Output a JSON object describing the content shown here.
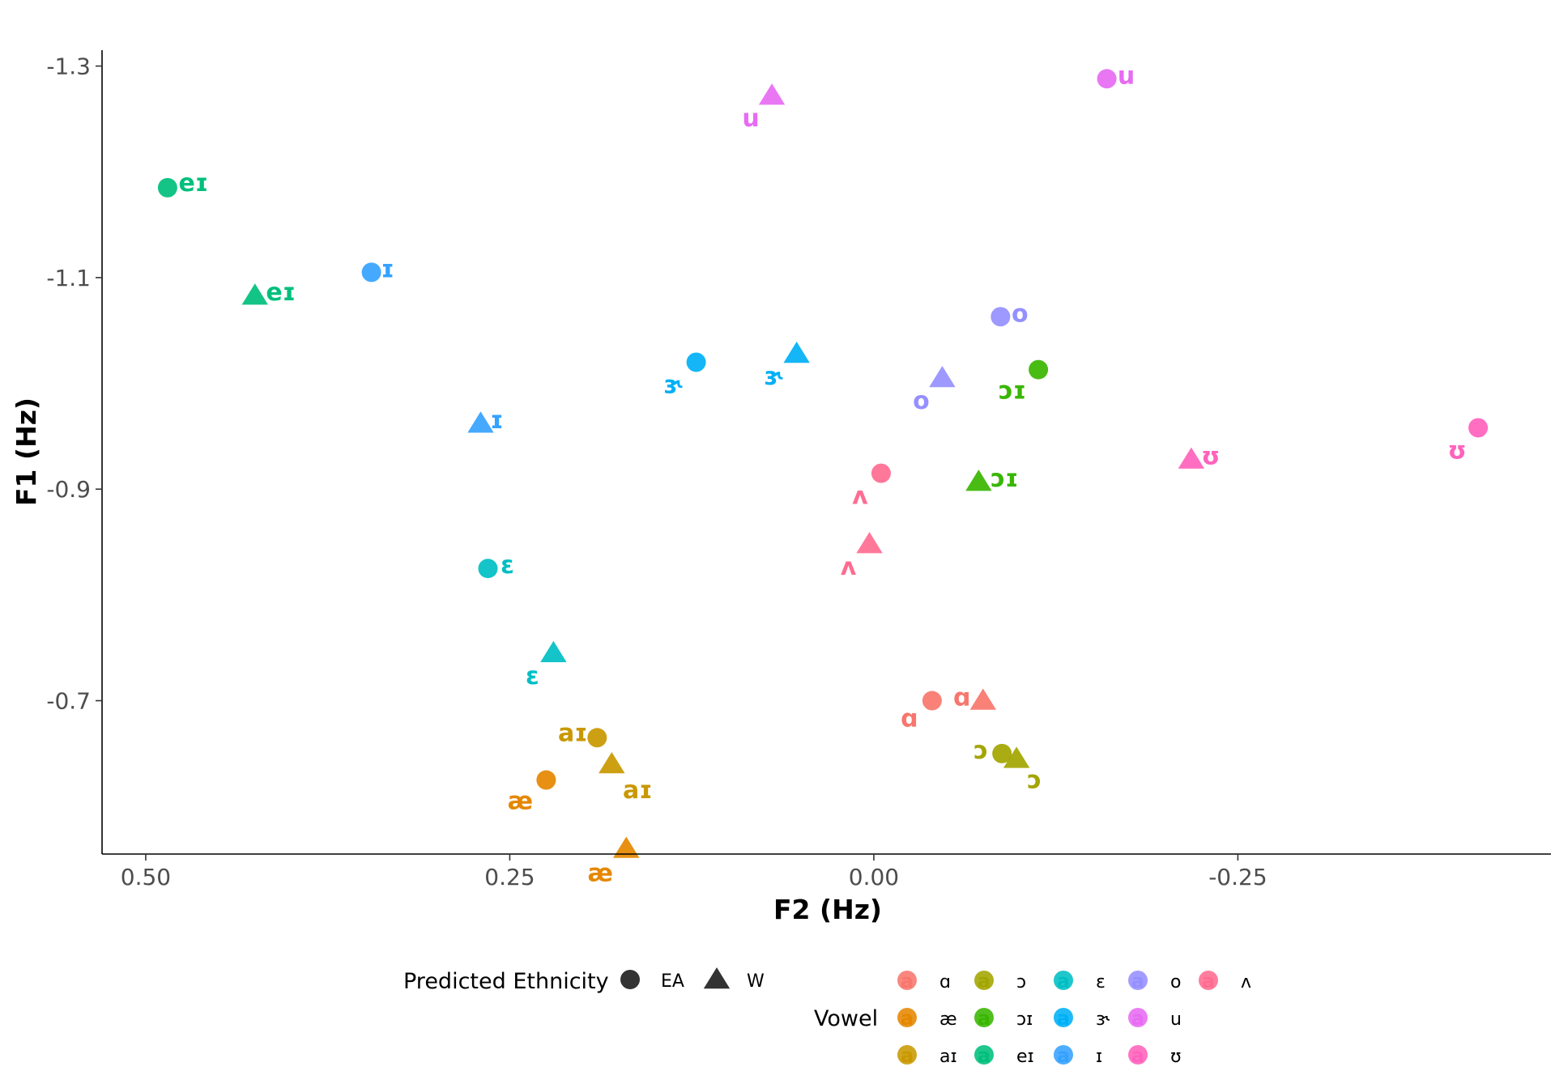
{
  "chart_data": {
    "type": "scatter",
    "xlabel": "F2 (Hz)",
    "ylabel": "F1 (Hz)",
    "xlim": [
      0.53,
      -0.465
    ],
    "ylim": [
      -0.555,
      -1.315
    ],
    "x_ticks": [
      0.5,
      0.25,
      0.0,
      -0.25
    ],
    "x_tick_labels": [
      "0.50",
      "0.25",
      "0.00",
      "-0.25"
    ],
    "y_ticks": [
      -1.3,
      -1.1,
      -0.9,
      -0.7
    ],
    "y_tick_labels": [
      "-1.3",
      "-1.1",
      "-0.9",
      "-0.7"
    ],
    "grid": false,
    "legend_placement": "bottom",
    "shape_legend": {
      "title": "Predicted Ethnicity",
      "items": [
        {
          "label": "EA",
          "shape": "circle"
        },
        {
          "label": "W",
          "shape": "triangle"
        }
      ]
    },
    "color_legend": {
      "title": "Vowel",
      "key_glyph": "a",
      "items": [
        {
          "label": "ɑ",
          "color": "#F8766D"
        },
        {
          "label": "æ",
          "color": "#E58700"
        },
        {
          "label": "aɪ",
          "color": "#C99800"
        },
        {
          "label": "ɔ",
          "color": "#A3A500"
        },
        {
          "label": "ɔɪ",
          "color": "#39B600"
        },
        {
          "label": "eɪ",
          "color": "#00BF7D"
        },
        {
          "label": "ɛ",
          "color": "#00BFC4"
        },
        {
          "label": "ɝ",
          "color": "#00B0F6"
        },
        {
          "label": "ɪ",
          "color": "#35A2FF"
        },
        {
          "label": "o",
          "color": "#9590FF"
        },
        {
          "label": "u",
          "color": "#E76BF3"
        },
        {
          "label": "ʊ",
          "color": "#FF62BC"
        },
        {
          "label": "ʌ",
          "color": "#FF6C91"
        }
      ]
    },
    "points": [
      {
        "vowel": "ɑ",
        "group": "EA",
        "x": -0.04,
        "y": -0.7
      },
      {
        "vowel": "ɑ",
        "group": "W",
        "x": -0.075,
        "y": -0.7
      },
      {
        "vowel": "æ",
        "group": "EA",
        "x": 0.225,
        "y": -0.625
      },
      {
        "vowel": "æ",
        "group": "W",
        "x": 0.17,
        "y": -0.56
      },
      {
        "vowel": "aɪ",
        "group": "EA",
        "x": 0.19,
        "y": -0.665
      },
      {
        "vowel": "aɪ",
        "group": "W",
        "x": 0.18,
        "y": -0.64
      },
      {
        "vowel": "ɔ",
        "group": "EA",
        "x": -0.088,
        "y": -0.65
      },
      {
        "vowel": "ɔ",
        "group": "W",
        "x": -0.098,
        "y": -0.645
      },
      {
        "vowel": "ɔɪ",
        "group": "EA",
        "x": -0.113,
        "y": -1.013
      },
      {
        "vowel": "ɔɪ",
        "group": "W",
        "x": -0.072,
        "y": -0.907
      },
      {
        "vowel": "eɪ",
        "group": "EA",
        "x": 0.485,
        "y": -1.185
      },
      {
        "vowel": "eɪ",
        "group": "W",
        "x": 0.425,
        "y": -1.083
      },
      {
        "vowel": "ɛ",
        "group": "EA",
        "x": 0.265,
        "y": -0.825
      },
      {
        "vowel": "ɛ",
        "group": "W",
        "x": 0.22,
        "y": -0.745
      },
      {
        "vowel": "ɝ",
        "group": "EA",
        "x": 0.122,
        "y": -1.02
      },
      {
        "vowel": "ɝ",
        "group": "W",
        "x": 0.053,
        "y": -1.028
      },
      {
        "vowel": "ɪ",
        "group": "EA",
        "x": 0.345,
        "y": -1.105
      },
      {
        "vowel": "ɪ",
        "group": "W",
        "x": 0.27,
        "y": -0.962
      },
      {
        "vowel": "o",
        "group": "EA",
        "x": -0.087,
        "y": -1.063
      },
      {
        "vowel": "o",
        "group": "W",
        "x": -0.047,
        "y": -1.005
      },
      {
        "vowel": "u",
        "group": "EA",
        "x": -0.16,
        "y": -1.288
      },
      {
        "vowel": "u",
        "group": "W",
        "x": 0.07,
        "y": -1.272
      },
      {
        "vowel": "ʊ",
        "group": "EA",
        "x": -0.415,
        "y": -0.958
      },
      {
        "vowel": "ʊ",
        "group": "W",
        "x": -0.218,
        "y": -0.928
      },
      {
        "vowel": "ʌ",
        "group": "EA",
        "x": -0.005,
        "y": -0.915
      },
      {
        "vowel": "ʌ",
        "group": "W",
        "x": 0.003,
        "y": -0.848
      }
    ]
  }
}
